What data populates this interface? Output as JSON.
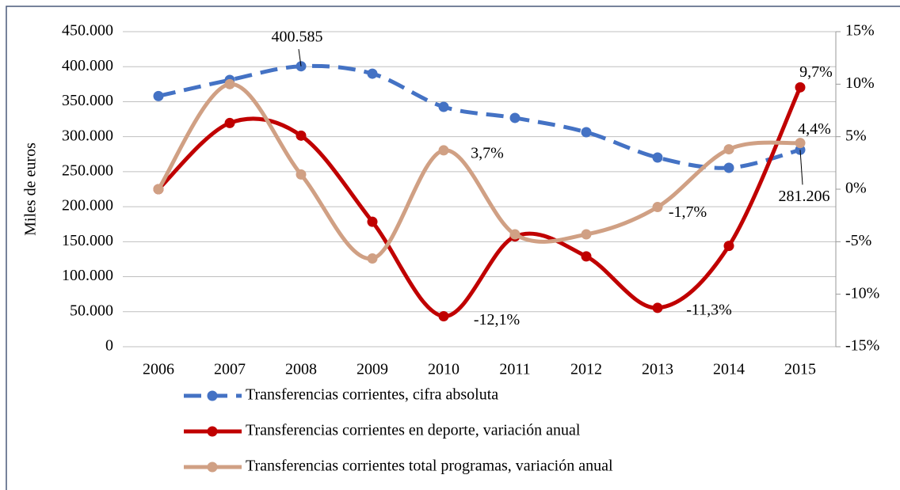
{
  "chart_data": {
    "type": "line",
    "y_label": "Miles de euros",
    "categories": [
      "2006",
      "2007",
      "2008",
      "2009",
      "2010",
      "2011",
      "2012",
      "2013",
      "2014",
      "2015"
    ],
    "series": [
      {
        "name": "Transferencias corrientes, cifra absoluta",
        "color": "#4472c4",
        "dashed": true,
        "values": [
          358000,
          381000,
          400585,
          390000,
          342600,
          326800,
          306400,
          270200,
          255500,
          281206
        ],
        "value_labels": [
          null,
          null,
          "400.585",
          null,
          null,
          null,
          null,
          null,
          null,
          "281.206"
        ]
      },
      {
        "name": "Transferencias corrientes en deporte, variación anual",
        "color": "#c00000",
        "axis": "y2",
        "values": [
          0,
          6.3,
          5.1,
          -3.1,
          -12.1,
          -4.5,
          -6.4,
          -11.3,
          -5.4,
          9.7
        ],
        "value_labels": [
          null,
          null,
          null,
          null,
          "-12,1%",
          null,
          null,
          "-11,3%",
          null,
          "9,7%"
        ]
      },
      {
        "name": "Transferencias corrientes total programas, variación anual",
        "color": "#d0a084",
        "axis": "y2",
        "values": [
          0,
          10.0,
          1.4,
          -6.6,
          3.7,
          -4.3,
          -4.3,
          -1.7,
          3.8,
          4.4
        ],
        "value_labels": [
          null,
          null,
          null,
          null,
          "3,7%",
          null,
          null,
          "-1,7%",
          null,
          "4,4%"
        ]
      }
    ],
    "ylim": [
      0,
      450000
    ],
    "yticks": [
      0,
      {
        "value": 50000,
        "label": "50.000"
      },
      {
        "value": 100000,
        "label": "100.000"
      },
      {
        "value": 150000,
        "label": "150.000"
      },
      {
        "value": 200000,
        "label": "200.000"
      },
      {
        "value": 250000,
        "label": "250.000"
      },
      {
        "value": 300000,
        "label": "300.000"
      },
      {
        "value": 350000,
        "label": "350.000"
      },
      {
        "value": 400000,
        "label": "400.000"
      },
      {
        "value": 450000,
        "label": "450.000"
      }
    ],
    "y2lim": [
      -15,
      15
    ],
    "y2ticks": [
      {
        "value": -15,
        "label": "-15%"
      },
      {
        "value": -10,
        "label": "-10%"
      },
      {
        "value": -5,
        "label": "-5%"
      },
      {
        "value": 0,
        "label": "0%"
      },
      {
        "value": 5,
        "label": "5%"
      },
      {
        "value": 10,
        "label": "10%"
      },
      {
        "value": 15,
        "label": "15%"
      }
    ],
    "grid": true,
    "legend": "bottom"
  }
}
